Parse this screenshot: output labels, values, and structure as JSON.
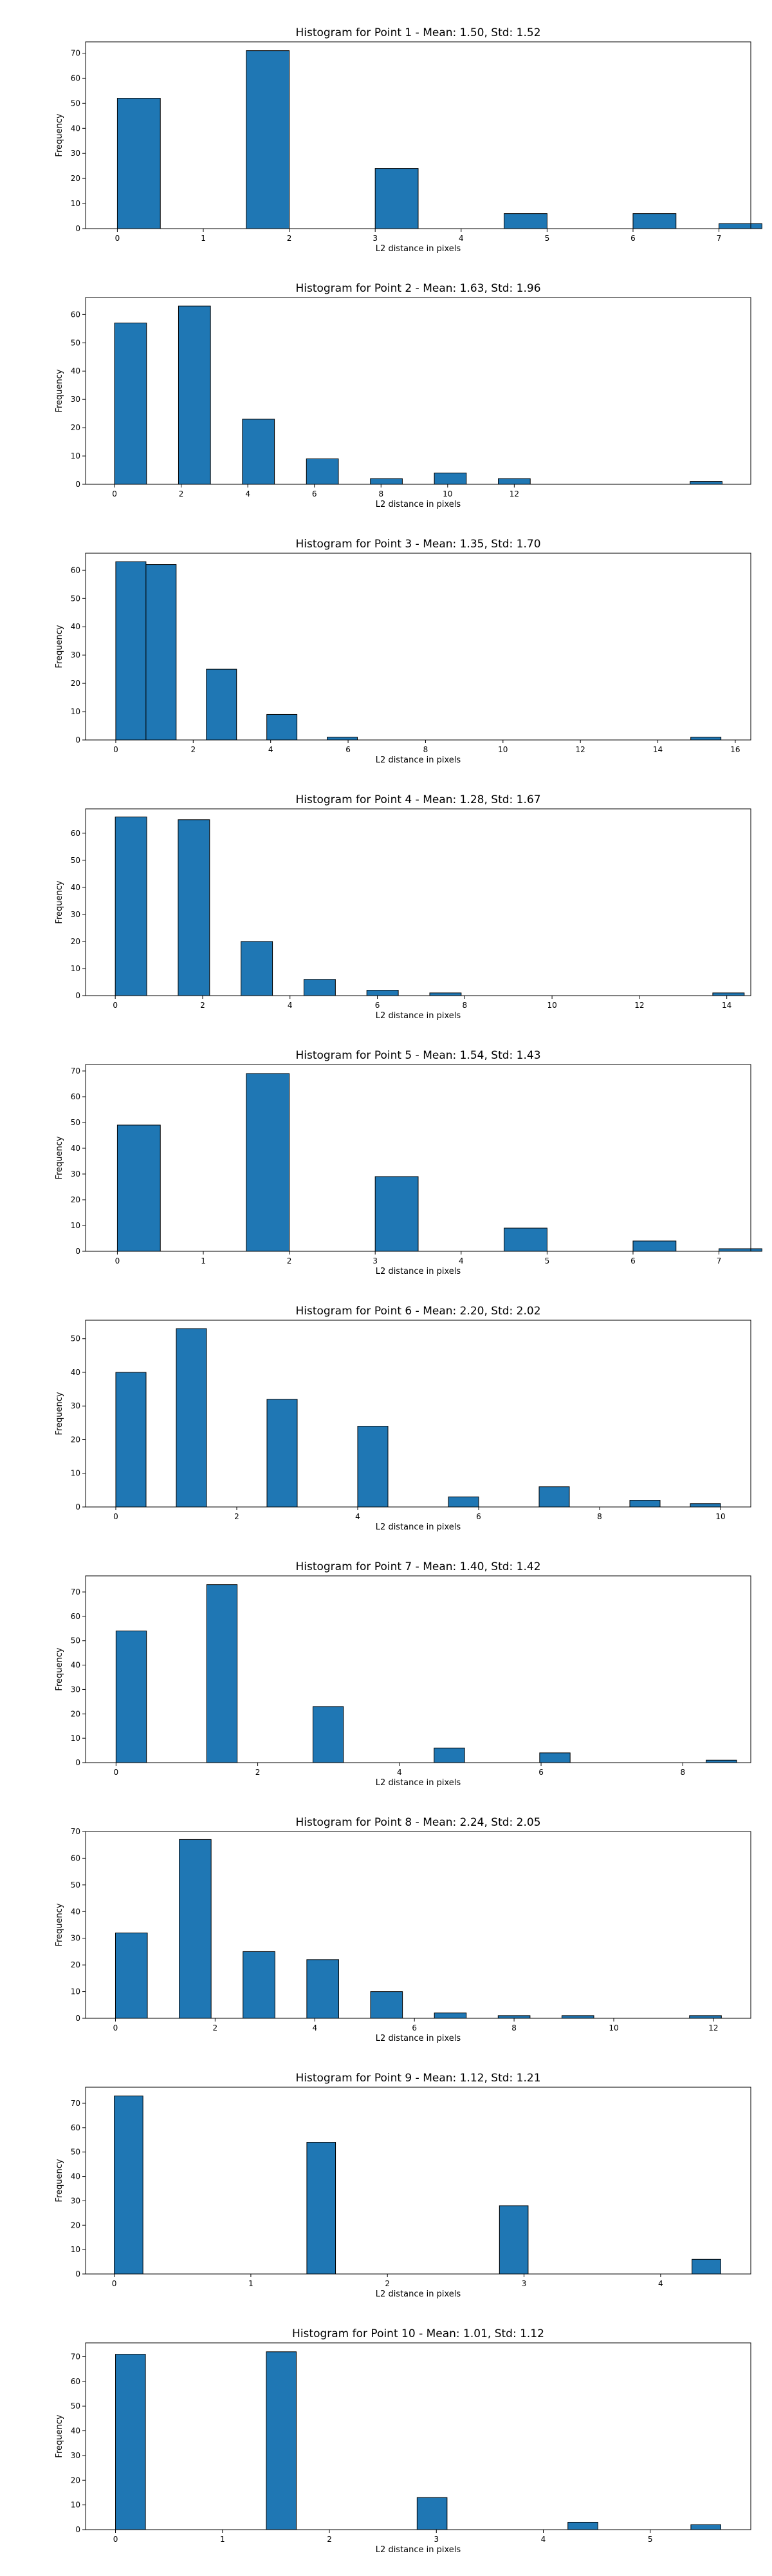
{
  "chart_data": [
    {
      "type": "bar",
      "title": "Histogram for Point 1 - Mean: 1.50, Std: 1.52",
      "xlabel": "L2 distance in pixels",
      "ylabel": "Frequency",
      "bin_width": 0.5,
      "bins": [
        [
          0,
          52
        ],
        [
          1.5,
          71
        ],
        [
          3,
          24
        ],
        [
          4.5,
          6
        ],
        [
          6,
          6
        ],
        [
          7,
          2
        ]
      ],
      "xlim": [
        -0.37,
        7.37
      ],
      "ylim": [
        0,
        74.5
      ],
      "xticks": [
        0,
        1,
        2,
        3,
        4,
        5,
        6,
        7
      ],
      "yticks": [
        0,
        10,
        20,
        30,
        40,
        50,
        60,
        70
      ]
    },
    {
      "type": "bar",
      "title": "Histogram for Point 2 - Mean: 1.63, Std: 1.96",
      "xlabel": "L2 distance in pixels",
      "ylabel": "Frequency",
      "bin_width": 0.96,
      "bins": [
        [
          0,
          57
        ],
        [
          1.92,
          63
        ],
        [
          3.84,
          23
        ],
        [
          5.76,
          9
        ],
        [
          7.68,
          2
        ],
        [
          9.6,
          4
        ],
        [
          11.52,
          2
        ],
        [
          17.28,
          1
        ]
      ],
      "xlim": [
        -0.87,
        19.1
      ],
      "ylim": [
        0,
        66
      ],
      "xticks": [
        0,
        2,
        4,
        6,
        8,
        10,
        12
      ],
      "yticks": [
        0,
        10,
        20,
        30,
        40,
        50,
        60
      ]
    },
    {
      "type": "bar",
      "title": "Histogram for Point 3 - Mean: 1.35, Std: 1.70",
      "xlabel": "L2 distance in pixels",
      "ylabel": "Frequency",
      "bin_width": 0.78,
      "bins": [
        [
          0,
          63
        ],
        [
          0.78,
          62
        ],
        [
          2.34,
          25
        ],
        [
          3.9,
          9
        ],
        [
          5.46,
          1
        ],
        [
          14.85,
          1
        ]
      ],
      "xlim": [
        -0.78,
        16.4
      ],
      "ylim": [
        0,
        66
      ],
      "xticks": [
        0,
        2,
        4,
        6,
        8,
        10,
        12,
        14,
        16
      ],
      "yticks": [
        0,
        10,
        20,
        30,
        40,
        50,
        60
      ]
    },
    {
      "type": "bar",
      "title": "Histogram for Point 4 - Mean: 1.28, Std: 1.67",
      "xlabel": "L2 distance in pixels",
      "ylabel": "Frequency",
      "bin_width": 0.72,
      "bins": [
        [
          0,
          66
        ],
        [
          1.44,
          65
        ],
        [
          2.88,
          20
        ],
        [
          4.32,
          6
        ],
        [
          5.76,
          2
        ],
        [
          7.2,
          1
        ],
        [
          13.68,
          1
        ]
      ],
      "xlim": [
        -0.68,
        14.55
      ],
      "ylim": [
        0,
        69
      ],
      "xticks": [
        0,
        2,
        4,
        6,
        8,
        10,
        12,
        14
      ],
      "yticks": [
        0,
        10,
        20,
        30,
        40,
        50,
        60
      ]
    },
    {
      "type": "bar",
      "title": "Histogram for Point 5 - Mean: 1.54, Std: 1.43",
      "xlabel": "L2 distance in pixels",
      "ylabel": "Frequency",
      "bin_width": 0.5,
      "bins": [
        [
          0,
          49
        ],
        [
          1.5,
          69
        ],
        [
          3,
          29
        ],
        [
          4.5,
          9
        ],
        [
          6,
          4
        ],
        [
          7,
          1
        ]
      ],
      "xlim": [
        -0.37,
        7.37
      ],
      "ylim": [
        0,
        72.5
      ],
      "xticks": [
        0,
        1,
        2,
        3,
        4,
        5,
        6,
        7
      ],
      "yticks": [
        0,
        10,
        20,
        30,
        40,
        50,
        60,
        70
      ]
    },
    {
      "type": "bar",
      "title": "Histogram for Point 6 - Mean: 2.20, Std: 2.02",
      "xlabel": "L2 distance in pixels",
      "ylabel": "Frequency",
      "bin_width": 0.5,
      "bins": [
        [
          0,
          40
        ],
        [
          1,
          53
        ],
        [
          2.5,
          32
        ],
        [
          4,
          24
        ],
        [
          5.5,
          3
        ],
        [
          7,
          6
        ],
        [
          8.5,
          2
        ],
        [
          9.5,
          1
        ]
      ],
      "xlim": [
        -0.5,
        10.5
      ],
      "ylim": [
        0,
        55.5
      ],
      "xticks": [
        0,
        2,
        4,
        6,
        8,
        10
      ],
      "yticks": [
        0,
        10,
        20,
        30,
        40,
        50
      ]
    },
    {
      "type": "bar",
      "title": "Histogram for Point 7 - Mean: 1.40, Std: 1.42",
      "xlabel": "L2 distance in pixels",
      "ylabel": "Frequency",
      "bin_width": 0.43,
      "bins": [
        [
          0,
          54
        ],
        [
          1.28,
          73
        ],
        [
          2.78,
          23
        ],
        [
          4.49,
          6
        ],
        [
          5.98,
          4
        ],
        [
          8.33,
          1
        ]
      ],
      "xlim": [
        -0.43,
        8.96
      ],
      "ylim": [
        0,
        76.6
      ],
      "xticks": [
        0,
        2,
        4,
        6,
        8
      ],
      "yticks": [
        0,
        10,
        20,
        30,
        40,
        50,
        60,
        70
      ]
    },
    {
      "type": "bar",
      "title": "Histogram for Point 8 - Mean: 2.24, Std: 2.05",
      "xlabel": "L2 distance in pixels",
      "ylabel": "Frequency",
      "bin_width": 0.64,
      "bins": [
        [
          0,
          32
        ],
        [
          1.28,
          67
        ],
        [
          2.56,
          25
        ],
        [
          3.84,
          22
        ],
        [
          5.12,
          10
        ],
        [
          6.4,
          2
        ],
        [
          7.68,
          1
        ],
        [
          8.96,
          1
        ],
        [
          11.52,
          1
        ]
      ],
      "xlim": [
        -0.6,
        12.75
      ],
      "ylim": [
        0,
        70
      ],
      "xticks": [
        0,
        2,
        4,
        6,
        8,
        10,
        12
      ],
      "yticks": [
        0,
        10,
        20,
        30,
        40,
        50,
        60,
        70
      ]
    },
    {
      "type": "bar",
      "title": "Histogram for Point 9 - Mean: 1.12, Std: 1.21",
      "xlabel": "L2 distance in pixels",
      "ylabel": "Frequency",
      "bin_width": 0.21,
      "bins": [
        [
          0,
          73
        ],
        [
          1.41,
          54
        ],
        [
          2.82,
          28
        ],
        [
          4.23,
          6
        ]
      ],
      "xlim": [
        -0.21,
        4.66
      ],
      "ylim": [
        0,
        76.6
      ],
      "xticks": [
        0,
        1,
        2,
        3,
        4
      ],
      "yticks": [
        0,
        10,
        20,
        30,
        40,
        50,
        60,
        70
      ]
    },
    {
      "type": "bar",
      "title": "Histogram for Point 10 - Mean: 1.01, Std: 1.12",
      "xlabel": "L2 distance in pixels",
      "ylabel": "Frequency",
      "bin_width": 0.28,
      "bins": [
        [
          0,
          71
        ],
        [
          1.41,
          72
        ],
        [
          2.82,
          13
        ],
        [
          4.23,
          3
        ],
        [
          5.38,
          2
        ]
      ],
      "xlim": [
        -0.28,
        5.94
      ],
      "ylim": [
        0,
        75.6
      ],
      "xticks": [
        0,
        1,
        2,
        3,
        4,
        5
      ],
      "yticks": [
        0,
        10,
        20,
        30,
        40,
        50,
        60,
        70
      ]
    }
  ],
  "colors": {
    "bar": "#1f77b4",
    "edge": "#000000",
    "axes": "#000000"
  }
}
